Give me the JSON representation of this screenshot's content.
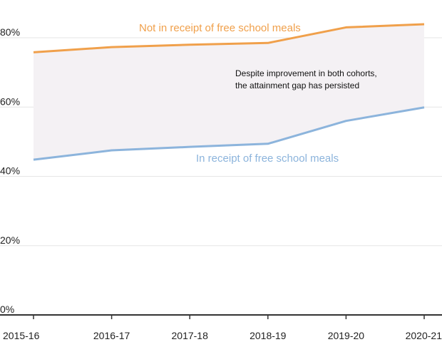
{
  "chart_data": {
    "type": "line",
    "categories": [
      "2015-16",
      "2016-17",
      "2017-18",
      "2018-19",
      "2019-20",
      "2020-21"
    ],
    "series": [
      {
        "name": "Not in receipt of free school meals",
        "values": [
          75.8,
          77.3,
          78.0,
          78.5,
          83.0,
          83.9
        ]
      },
      {
        "name": "In receipt of free school meals",
        "values": [
          44.8,
          47.5,
          48.5,
          49.4,
          56.0,
          59.9
        ]
      }
    ],
    "ylim": [
      0,
      85
    ],
    "yticks": [
      0,
      20,
      40,
      60,
      80
    ],
    "ytick_labels": [
      "0%",
      "20%",
      "40%",
      "60%",
      "80%"
    ],
    "annotation": [
      "Despite improvement in both cohorts,",
      "the attainment gap has persisted"
    ],
    "colors": {
      "not_fsm": "#f0a04b",
      "fsm": "#8cb4dc",
      "gap_fill": "#f4f1f4",
      "grid": "#e6e6e6",
      "axis": "#333333"
    },
    "grid": true,
    "gap_shaded": true
  }
}
